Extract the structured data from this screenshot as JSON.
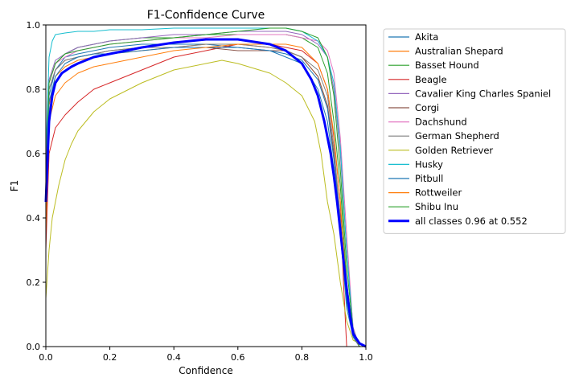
{
  "chart_data": {
    "type": "line",
    "title": "F1-Confidence Curve",
    "xlabel": "Confidence",
    "ylabel": "F1",
    "xlim": [
      0,
      1
    ],
    "ylim": [
      0,
      1
    ],
    "xticks": [
      "0.0",
      "0.2",
      "0.4",
      "0.6",
      "0.8",
      "1.0"
    ],
    "yticks": [
      "0.0",
      "0.2",
      "0.4",
      "0.6",
      "0.8",
      "1.0"
    ],
    "grid": false,
    "legend_position": "outside-right",
    "series": [
      {
        "name": "Akita",
        "color": "#1f77b4",
        "x": [
          0,
          0.01,
          0.03,
          0.06,
          0.1,
          0.15,
          0.2,
          0.3,
          0.4,
          0.5,
          0.6,
          0.7,
          0.75,
          0.8,
          0.85,
          0.88,
          0.9,
          0.92,
          0.94,
          0.96,
          0.98,
          1.0
        ],
        "y": [
          0.45,
          0.78,
          0.86,
          0.9,
          0.91,
          0.92,
          0.93,
          0.94,
          0.94,
          0.94,
          0.93,
          0.92,
          0.9,
          0.88,
          0.8,
          0.7,
          0.55,
          0.35,
          0.12,
          0.03,
          0,
          0
        ]
      },
      {
        "name": "Australian Shepard",
        "color": "#ff7f0e",
        "x": [
          0,
          0.01,
          0.03,
          0.06,
          0.1,
          0.15,
          0.2,
          0.3,
          0.4,
          0.5,
          0.6,
          0.7,
          0.75,
          0.8,
          0.85,
          0.88,
          0.9,
          0.92,
          0.94,
          0.96,
          0.98,
          1.0
        ],
        "y": [
          0.4,
          0.75,
          0.84,
          0.87,
          0.89,
          0.9,
          0.91,
          0.92,
          0.93,
          0.94,
          0.94,
          0.93,
          0.92,
          0.9,
          0.84,
          0.75,
          0.6,
          0.4,
          0.15,
          0.03,
          0,
          0
        ]
      },
      {
        "name": "Basset Hound",
        "color": "#2ca02c",
        "x": [
          0,
          0.01,
          0.03,
          0.06,
          0.1,
          0.15,
          0.2,
          0.3,
          0.4,
          0.5,
          0.6,
          0.7,
          0.75,
          0.8,
          0.85,
          0.88,
          0.9,
          0.92,
          0.94,
          0.96,
          0.98,
          1.0
        ],
        "y": [
          0.5,
          0.82,
          0.88,
          0.91,
          0.93,
          0.94,
          0.95,
          0.96,
          0.96,
          0.97,
          0.97,
          0.97,
          0.97,
          0.96,
          0.93,
          0.85,
          0.7,
          0.5,
          0.2,
          0.04,
          0,
          0
        ]
      },
      {
        "name": "Beagle",
        "color": "#d62728",
        "x": [
          0,
          0.01,
          0.03,
          0.06,
          0.1,
          0.15,
          0.2,
          0.3,
          0.4,
          0.5,
          0.6,
          0.7,
          0.75,
          0.8,
          0.85,
          0.88,
          0.9,
          0.92,
          0.93,
          0.94,
          0.96,
          1.0
        ],
        "y": [
          0.3,
          0.6,
          0.68,
          0.72,
          0.76,
          0.8,
          0.82,
          0.86,
          0.9,
          0.92,
          0.94,
          0.94,
          0.93,
          0.92,
          0.88,
          0.8,
          0.65,
          0.45,
          0.2,
          0,
          0,
          0
        ]
      },
      {
        "name": "Cavalier King Charles Spaniel",
        "color": "#9467bd",
        "x": [
          0,
          0.01,
          0.03,
          0.06,
          0.1,
          0.15,
          0.2,
          0.3,
          0.4,
          0.5,
          0.6,
          0.7,
          0.75,
          0.8,
          0.85,
          0.88,
          0.9,
          0.92,
          0.94,
          0.96,
          0.98,
          1.0
        ],
        "y": [
          0.55,
          0.83,
          0.89,
          0.91,
          0.93,
          0.94,
          0.95,
          0.96,
          0.97,
          0.97,
          0.98,
          0.98,
          0.98,
          0.97,
          0.94,
          0.9,
          0.8,
          0.6,
          0.3,
          0.06,
          0,
          0
        ]
      },
      {
        "name": "Corgi",
        "color": "#8c564b",
        "x": [
          0,
          0.01,
          0.03,
          0.06,
          0.1,
          0.15,
          0.2,
          0.3,
          0.4,
          0.5,
          0.6,
          0.7,
          0.75,
          0.8,
          0.85,
          0.88,
          0.9,
          0.92,
          0.94,
          0.96,
          0.98,
          1.0
        ],
        "y": [
          0.45,
          0.8,
          0.86,
          0.89,
          0.9,
          0.91,
          0.92,
          0.93,
          0.93,
          0.93,
          0.92,
          0.92,
          0.92,
          0.9,
          0.84,
          0.75,
          0.6,
          0.4,
          0.15,
          0.03,
          0,
          0
        ]
      },
      {
        "name": "Dachshund",
        "color": "#e377c2",
        "x": [
          0,
          0.01,
          0.03,
          0.06,
          0.1,
          0.15,
          0.2,
          0.3,
          0.4,
          0.5,
          0.6,
          0.7,
          0.75,
          0.8,
          0.85,
          0.88,
          0.9,
          0.92,
          0.94,
          0.96,
          0.98,
          1.0
        ],
        "y": [
          0.5,
          0.82,
          0.88,
          0.9,
          0.92,
          0.93,
          0.94,
          0.95,
          0.96,
          0.96,
          0.97,
          0.97,
          0.97,
          0.96,
          0.95,
          0.92,
          0.85,
          0.65,
          0.35,
          0.05,
          0,
          0
        ]
      },
      {
        "name": "German Shepherd",
        "color": "#7f7f7f",
        "x": [
          0,
          0.01,
          0.03,
          0.06,
          0.1,
          0.15,
          0.2,
          0.3,
          0.4,
          0.5,
          0.6,
          0.7,
          0.75,
          0.8,
          0.85,
          0.88,
          0.9,
          0.92,
          0.94,
          0.96,
          0.98,
          1.0
        ],
        "y": [
          0.5,
          0.8,
          0.86,
          0.89,
          0.9,
          0.91,
          0.92,
          0.93,
          0.93,
          0.94,
          0.94,
          0.93,
          0.92,
          0.9,
          0.86,
          0.78,
          0.62,
          0.4,
          0.15,
          0.03,
          0,
          0
        ]
      },
      {
        "name": "Golden Retriever",
        "color": "#bcbd22",
        "x": [
          0,
          0.01,
          0.02,
          0.04,
          0.06,
          0.08,
          0.1,
          0.15,
          0.2,
          0.3,
          0.4,
          0.5,
          0.55,
          0.6,
          0.7,
          0.75,
          0.8,
          0.84,
          0.86,
          0.88,
          0.9,
          0.92,
          0.94,
          0.96,
          1.0
        ],
        "y": [
          0.15,
          0.3,
          0.4,
          0.5,
          0.58,
          0.63,
          0.67,
          0.73,
          0.77,
          0.82,
          0.86,
          0.88,
          0.89,
          0.88,
          0.85,
          0.82,
          0.78,
          0.7,
          0.6,
          0.45,
          0.35,
          0.2,
          0.08,
          0.02,
          0
        ]
      },
      {
        "name": "Husky",
        "color": "#17becf",
        "x": [
          0,
          0.01,
          0.02,
          0.03,
          0.06,
          0.1,
          0.15,
          0.2,
          0.3,
          0.4,
          0.5,
          0.6,
          0.7,
          0.75,
          0.8,
          0.85,
          0.88,
          0.9,
          0.92,
          0.94,
          0.96,
          0.98,
          1.0
        ],
        "y": [
          0.6,
          0.9,
          0.95,
          0.97,
          0.975,
          0.98,
          0.98,
          0.985,
          0.985,
          0.99,
          0.99,
          0.99,
          0.99,
          0.99,
          0.98,
          0.95,
          0.9,
          0.82,
          0.62,
          0.3,
          0.05,
          0,
          0
        ]
      },
      {
        "name": "Pitbull",
        "color": "#1f77b4",
        "x": [
          0,
          0.01,
          0.03,
          0.06,
          0.1,
          0.15,
          0.2,
          0.3,
          0.4,
          0.5,
          0.6,
          0.7,
          0.75,
          0.8,
          0.85,
          0.88,
          0.9,
          0.92,
          0.94,
          0.96,
          0.98,
          1.0
        ],
        "y": [
          0.4,
          0.76,
          0.84,
          0.88,
          0.9,
          0.91,
          0.91,
          0.92,
          0.93,
          0.93,
          0.93,
          0.92,
          0.91,
          0.89,
          0.83,
          0.74,
          0.58,
          0.38,
          0.14,
          0.03,
          0,
          0
        ]
      },
      {
        "name": "Rottweiler",
        "color": "#ff7f0e",
        "x": [
          0,
          0.01,
          0.03,
          0.06,
          0.1,
          0.15,
          0.2,
          0.3,
          0.4,
          0.5,
          0.6,
          0.7,
          0.75,
          0.8,
          0.85,
          0.88,
          0.9,
          0.92,
          0.94,
          0.96,
          0.98,
          1.0
        ],
        "y": [
          0.35,
          0.7,
          0.78,
          0.82,
          0.85,
          0.87,
          0.88,
          0.9,
          0.92,
          0.93,
          0.94,
          0.94,
          0.94,
          0.93,
          0.88,
          0.8,
          0.66,
          0.45,
          0.18,
          0.04,
          0,
          0
        ]
      },
      {
        "name": "Shibu Inu",
        "color": "#2ca02c",
        "x": [
          0,
          0.01,
          0.03,
          0.06,
          0.1,
          0.15,
          0.2,
          0.3,
          0.4,
          0.5,
          0.6,
          0.7,
          0.75,
          0.8,
          0.85,
          0.88,
          0.9,
          0.92,
          0.94,
          0.96,
          0.98,
          1.0
        ],
        "y": [
          0.5,
          0.82,
          0.88,
          0.91,
          0.92,
          0.93,
          0.94,
          0.95,
          0.96,
          0.97,
          0.98,
          0.99,
          0.99,
          0.98,
          0.96,
          0.9,
          0.78,
          0.55,
          0.25,
          0.05,
          0,
          0
        ]
      },
      {
        "name": "all classes 0.96 at 0.552",
        "color": "#0000ff",
        "bold": true,
        "x": [
          0,
          0.01,
          0.02,
          0.03,
          0.05,
          0.08,
          0.1,
          0.15,
          0.2,
          0.3,
          0.4,
          0.5,
          0.552,
          0.6,
          0.7,
          0.75,
          0.8,
          0.83,
          0.85,
          0.87,
          0.89,
          0.9,
          0.91,
          0.92,
          0.93,
          0.94,
          0.95,
          0.96,
          0.98,
          1.0
        ],
        "y": [
          0.45,
          0.7,
          0.78,
          0.82,
          0.85,
          0.87,
          0.88,
          0.9,
          0.91,
          0.93,
          0.945,
          0.955,
          0.955,
          0.955,
          0.94,
          0.92,
          0.88,
          0.83,
          0.78,
          0.7,
          0.6,
          0.53,
          0.45,
          0.36,
          0.27,
          0.18,
          0.1,
          0.04,
          0.01,
          0
        ]
      }
    ]
  }
}
